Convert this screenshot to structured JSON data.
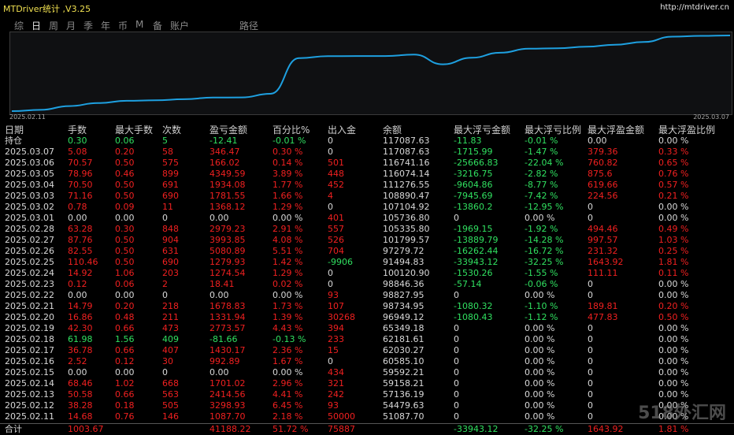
{
  "window": {
    "title": "MTDriver统计 ,V3.25",
    "url": "http://mtdriver.cn"
  },
  "tabs": [
    {
      "label": "综",
      "active": false
    },
    {
      "label": "日",
      "active": true
    },
    {
      "label": "周",
      "active": false
    },
    {
      "label": "月",
      "active": false
    },
    {
      "label": "季",
      "active": false
    },
    {
      "label": "年",
      "active": false
    },
    {
      "label": "币",
      "active": false
    },
    {
      "label": "M",
      "active": false
    },
    {
      "label": "备",
      "active": false
    },
    {
      "label": "账户",
      "active": false
    },
    {
      "label": "路径",
      "active": false
    }
  ],
  "chart": {
    "start_label": "2025.02.11",
    "end_label": "2025.03.07",
    "line_color": "#1ea0e0"
  },
  "columns": [
    "日期",
    "手数",
    "最大手数",
    "次数",
    "盈亏金额",
    "百分比%",
    "出入金",
    "余额",
    "最大浮亏金额",
    "最大浮亏比例",
    "最大浮盈金额",
    "最大浮盈比例"
  ],
  "rows": [
    {
      "d": "持仓",
      "lots": "0.30",
      "maxlots": "0.06",
      "n": "5",
      "pl": "-12.41",
      "pct": "-0.01 %",
      "io": "0",
      "bal": "117087.63",
      "mfl": "-11.83",
      "mflp": "-0.01 %",
      "mfp": "0.00",
      "mfpp": "0.00 %",
      "s": "neg"
    },
    {
      "d": "2025.03.07",
      "lots": "5.08",
      "maxlots": "0.20",
      "n": "58",
      "pl": "346.47",
      "pct": "0.30 %",
      "io": "0",
      "bal": "117087.63",
      "mfl": "-1715.99",
      "mflp": "-1.47 %",
      "mfp": "379.36",
      "mfpp": "0.33 %",
      "s": "pos"
    },
    {
      "d": "2025.03.06",
      "lots": "70.57",
      "maxlots": "0.50",
      "n": "575",
      "pl": "166.02",
      "pct": "0.14 %",
      "io": "501",
      "bal": "116741.16",
      "mfl": "-25666.83",
      "mflp": "-22.04 %",
      "mfp": "760.82",
      "mfpp": "0.65 %",
      "s": "pos"
    },
    {
      "d": "2025.03.05",
      "lots": "78.96",
      "maxlots": "0.46",
      "n": "899",
      "pl": "4349.59",
      "pct": "3.89 %",
      "io": "448",
      "bal": "116074.14",
      "mfl": "-3216.75",
      "mflp": "-2.82 %",
      "mfp": "875.6",
      "mfpp": "0.76 %",
      "s": "pos"
    },
    {
      "d": "2025.03.04",
      "lots": "70.50",
      "maxlots": "0.50",
      "n": "691",
      "pl": "1934.08",
      "pct": "1.77 %",
      "io": "452",
      "bal": "111276.55",
      "mfl": "-9604.86",
      "mflp": "-8.77 %",
      "mfp": "619.66",
      "mfpp": "0.57 %",
      "s": "pos"
    },
    {
      "d": "2025.03.03",
      "lots": "71.16",
      "maxlots": "0.50",
      "n": "690",
      "pl": "1781.55",
      "pct": "1.66 %",
      "io": "4",
      "bal": "108890.47",
      "mfl": "-7945.69",
      "mflp": "-7.42 %",
      "mfp": "224.56",
      "mfpp": "0.21 %",
      "s": "pos"
    },
    {
      "d": "2025.03.02",
      "lots": "0.78",
      "maxlots": "0.09",
      "n": "11",
      "pl": "1368.12",
      "pct": "1.29 %",
      "io": "0",
      "bal": "107104.92",
      "mfl": "-13860.2",
      "mflp": "-12.95 %",
      "mfp": "0",
      "mfpp": "0.00 %",
      "s": "pos"
    },
    {
      "d": "2025.03.01",
      "lots": "0.00",
      "maxlots": "0.00",
      "n": "0",
      "pl": "0.00",
      "pct": "0.00 %",
      "io": "401",
      "bal": "105736.80",
      "mfl": "0",
      "mflp": "0.00 %",
      "mfp": "0",
      "mfpp": "0.00 %",
      "s": "neu"
    },
    {
      "d": "2025.02.28",
      "lots": "63.28",
      "maxlots": "0.30",
      "n": "848",
      "pl": "2979.23",
      "pct": "2.91 %",
      "io": "557",
      "bal": "105335.80",
      "mfl": "-1969.15",
      "mflp": "-1.92 %",
      "mfp": "494.46",
      "mfpp": "0.49 %",
      "s": "pos"
    },
    {
      "d": "2025.02.27",
      "lots": "87.76",
      "maxlots": "0.50",
      "n": "904",
      "pl": "3993.85",
      "pct": "4.08 %",
      "io": "526",
      "bal": "101799.57",
      "mfl": "-13889.79",
      "mflp": "-14.28 %",
      "mfp": "997.57",
      "mfpp": "1.03 %",
      "s": "pos"
    },
    {
      "d": "2025.02.26",
      "lots": "82.55",
      "maxlots": "0.50",
      "n": "631",
      "pl": "5080.89",
      "pct": "5.51 %",
      "io": "704",
      "bal": "97279.72",
      "mfl": "-16262.44",
      "mflp": "-16.72 %",
      "mfp": "231.32",
      "mfpp": "0.25 %",
      "s": "pos"
    },
    {
      "d": "2025.02.25",
      "lots": "110.46",
      "maxlots": "0.50",
      "n": "690",
      "pl": "1279.93",
      "pct": "1.42 %",
      "io": "-9906",
      "bal": "91494.83",
      "mfl": "-33943.12",
      "mflp": "-32.25 %",
      "mfp": "1643.92",
      "mfpp": "1.81 %",
      "s": "pos"
    },
    {
      "d": "2025.02.24",
      "lots": "14.92",
      "maxlots": "1.06",
      "n": "203",
      "pl": "1274.54",
      "pct": "1.29 %",
      "io": "0",
      "bal": "100120.90",
      "mfl": "-1530.26",
      "mflp": "-1.55 %",
      "mfp": "111.11",
      "mfpp": "0.11 %",
      "s": "pos"
    },
    {
      "d": "2025.02.23",
      "lots": "0.12",
      "maxlots": "0.06",
      "n": "2",
      "pl": "18.41",
      "pct": "0.02 %",
      "io": "0",
      "bal": "98846.36",
      "mfl": "-57.14",
      "mflp": "-0.06 %",
      "mfp": "0",
      "mfpp": "0.00 %",
      "s": "pos"
    },
    {
      "d": "2025.02.22",
      "lots": "0.00",
      "maxlots": "0.00",
      "n": "0",
      "pl": "0.00",
      "pct": "0.00 %",
      "io": "93",
      "bal": "98827.95",
      "mfl": "0",
      "mflp": "0.00 %",
      "mfp": "0",
      "mfpp": "0.00 %",
      "s": "neu"
    },
    {
      "d": "2025.02.21",
      "lots": "14.79",
      "maxlots": "0.20",
      "n": "218",
      "pl": "1678.83",
      "pct": "1.73 %",
      "io": "107",
      "bal": "98734.95",
      "mfl": "-1080.32",
      "mflp": "-1.10 %",
      "mfp": "189.81",
      "mfpp": "0.20 %",
      "s": "pos"
    },
    {
      "d": "2025.02.20",
      "lots": "16.86",
      "maxlots": "0.48",
      "n": "211",
      "pl": "1331.94",
      "pct": "1.39 %",
      "io": "30268",
      "bal": "96949.12",
      "mfl": "-1080.43",
      "mflp": "-1.12 %",
      "mfp": "477.83",
      "mfpp": "0.50 %",
      "s": "pos"
    },
    {
      "d": "2025.02.19",
      "lots": "42.30",
      "maxlots": "0.66",
      "n": "473",
      "pl": "2773.57",
      "pct": "4.43 %",
      "io": "394",
      "bal": "65349.18",
      "mfl": "0",
      "mflp": "0.00 %",
      "mfp": "0",
      "mfpp": "0.00 %",
      "s": "pos"
    },
    {
      "d": "2025.02.18",
      "lots": "61.98",
      "maxlots": "1.56",
      "n": "409",
      "pl": "-81.66",
      "pct": "-0.13 %",
      "io": "233",
      "bal": "62181.61",
      "mfl": "0",
      "mflp": "0.00 %",
      "mfp": "0",
      "mfpp": "0.00 %",
      "s": "neg"
    },
    {
      "d": "2025.02.17",
      "lots": "36.78",
      "maxlots": "0.66",
      "n": "407",
      "pl": "1430.17",
      "pct": "2.36 %",
      "io": "15",
      "bal": "62030.27",
      "mfl": "0",
      "mflp": "0.00 %",
      "mfp": "0",
      "mfpp": "0.00 %",
      "s": "pos"
    },
    {
      "d": "2025.02.16",
      "lots": "2.52",
      "maxlots": "0.12",
      "n": "30",
      "pl": "992.89",
      "pct": "1.67 %",
      "io": "0",
      "bal": "60585.10",
      "mfl": "0",
      "mflp": "0.00 %",
      "mfp": "0",
      "mfpp": "0.00 %",
      "s": "pos"
    },
    {
      "d": "2025.02.15",
      "lots": "0.00",
      "maxlots": "0.00",
      "n": "0",
      "pl": "0.00",
      "pct": "0.00 %",
      "io": "434",
      "bal": "59592.21",
      "mfl": "0",
      "mflp": "0.00 %",
      "mfp": "0",
      "mfpp": "0.00 %",
      "s": "neu"
    },
    {
      "d": "2025.02.14",
      "lots": "68.46",
      "maxlots": "1.02",
      "n": "668",
      "pl": "1701.02",
      "pct": "2.96 %",
      "io": "321",
      "bal": "59158.21",
      "mfl": "0",
      "mflp": "0.00 %",
      "mfp": "0",
      "mfpp": "0.00 %",
      "s": "pos"
    },
    {
      "d": "2025.02.13",
      "lots": "50.58",
      "maxlots": "0.66",
      "n": "563",
      "pl": "2414.56",
      "pct": "4.41 %",
      "io": "242",
      "bal": "57136.19",
      "mfl": "0",
      "mflp": "0.00 %",
      "mfp": "0",
      "mfpp": "0.00 %",
      "s": "pos"
    },
    {
      "d": "2025.02.12",
      "lots": "38.28",
      "maxlots": "0.18",
      "n": "505",
      "pl": "3298.93",
      "pct": "6.45 %",
      "io": "93",
      "bal": "54479.63",
      "mfl": "0",
      "mflp": "0.00 %",
      "mfp": "0",
      "mfpp": "0.00 %",
      "s": "pos"
    },
    {
      "d": "2025.02.11",
      "lots": "14.68",
      "maxlots": "0.76",
      "n": "146",
      "pl": "1087.70",
      "pct": "2.18 %",
      "io": "50000",
      "bal": "51087.70",
      "mfl": "0",
      "mflp": "0.00 %",
      "mfp": "0",
      "mfpp": "0.00 %",
      "s": "pos"
    }
  ],
  "summary": {
    "d": "合计",
    "lots": "1003.67",
    "pl": "41188.22",
    "pct": "51.72 %",
    "io": "75887",
    "mfl": "-33943.12",
    "mflp": "-32.25 %",
    "mfp": "1643.92",
    "mfpp": "1.81 %"
  },
  "watermark": "518外汇网"
}
